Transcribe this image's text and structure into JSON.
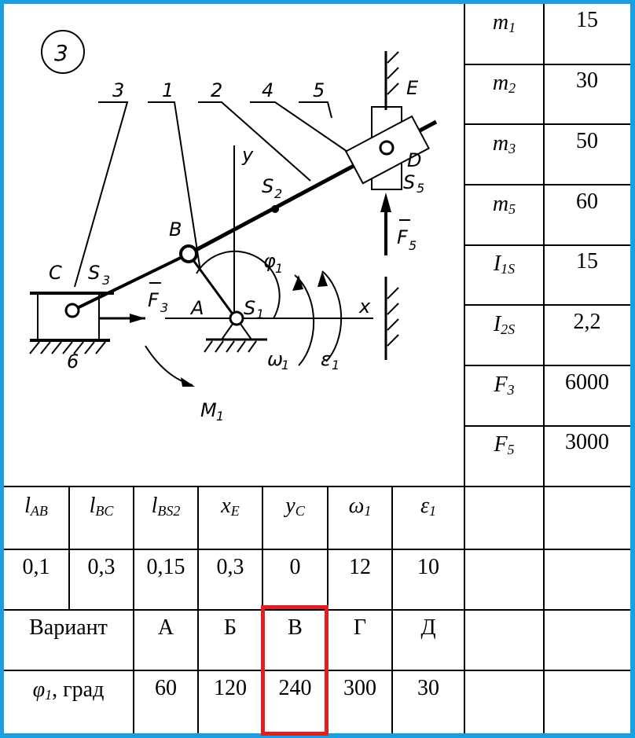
{
  "diagram": {
    "number": "3",
    "link_labels": [
      "3",
      "1",
      "2",
      "4",
      "5",
      "6"
    ],
    "point_labels": {
      "C": "C",
      "S3": "S",
      "S3_sub": "3",
      "B": "B",
      "A": "A",
      "S1": "S",
      "S1_sub": "1",
      "S2": "S",
      "S2_sub": "2",
      "D": "D",
      "S5": "S",
      "S5_sub": "5",
      "E": "E",
      "y": "y",
      "x": "x"
    },
    "force_labels": {
      "F3": "F",
      "F3_sub": "3",
      "F5": "F",
      "F5_sub": "5",
      "M1": "M",
      "M1_sub": "1",
      "omega1": "ω",
      "omega1_sub": "1",
      "eps1": "ε",
      "eps1_sub": "1",
      "phi1": "φ",
      "phi1_sub": "1"
    }
  },
  "right_table": [
    {
      "sym": "m",
      "sub": "1",
      "val": "15"
    },
    {
      "sym": "m",
      "sub": "2",
      "val": "30"
    },
    {
      "sym": "m",
      "sub": "3",
      "val": "50"
    },
    {
      "sym": "m",
      "sub": "5",
      "val": "60"
    },
    {
      "sym": "I",
      "sub": "1S",
      "val": "15"
    },
    {
      "sym": "I",
      "sub": "2S",
      "val": "2,2"
    },
    {
      "sym": "F",
      "sub": "3",
      "val": "6000"
    },
    {
      "sym": "F",
      "sub": "5",
      "val": "3000"
    }
  ],
  "params": {
    "headers": [
      {
        "sym": "l",
        "sub": "AB"
      },
      {
        "sym": "l",
        "sub": "BC"
      },
      {
        "sym": "l",
        "sub": "BS2"
      },
      {
        "sym": "x",
        "sub": "E"
      },
      {
        "sym": "y",
        "sub": "C"
      },
      {
        "sym": "ω",
        "sub": "1"
      },
      {
        "sym": "ε",
        "sub": "1"
      }
    ],
    "values": [
      "0,1",
      "0,3",
      "0,15",
      "0,3",
      "0",
      "12",
      "10"
    ]
  },
  "variants": {
    "label": "Вариант",
    "letters": [
      "А",
      "Б",
      "В",
      "Г",
      "Д"
    ],
    "angle_label_sym": "φ",
    "angle_label_sub": "1",
    "angle_label_unit": ", град",
    "angles": [
      "60",
      "120",
      "240",
      "300",
      "30"
    ],
    "selected": "В",
    "highlight_color": "#e02020"
  },
  "colors": {
    "border": "#1aa0e0"
  }
}
